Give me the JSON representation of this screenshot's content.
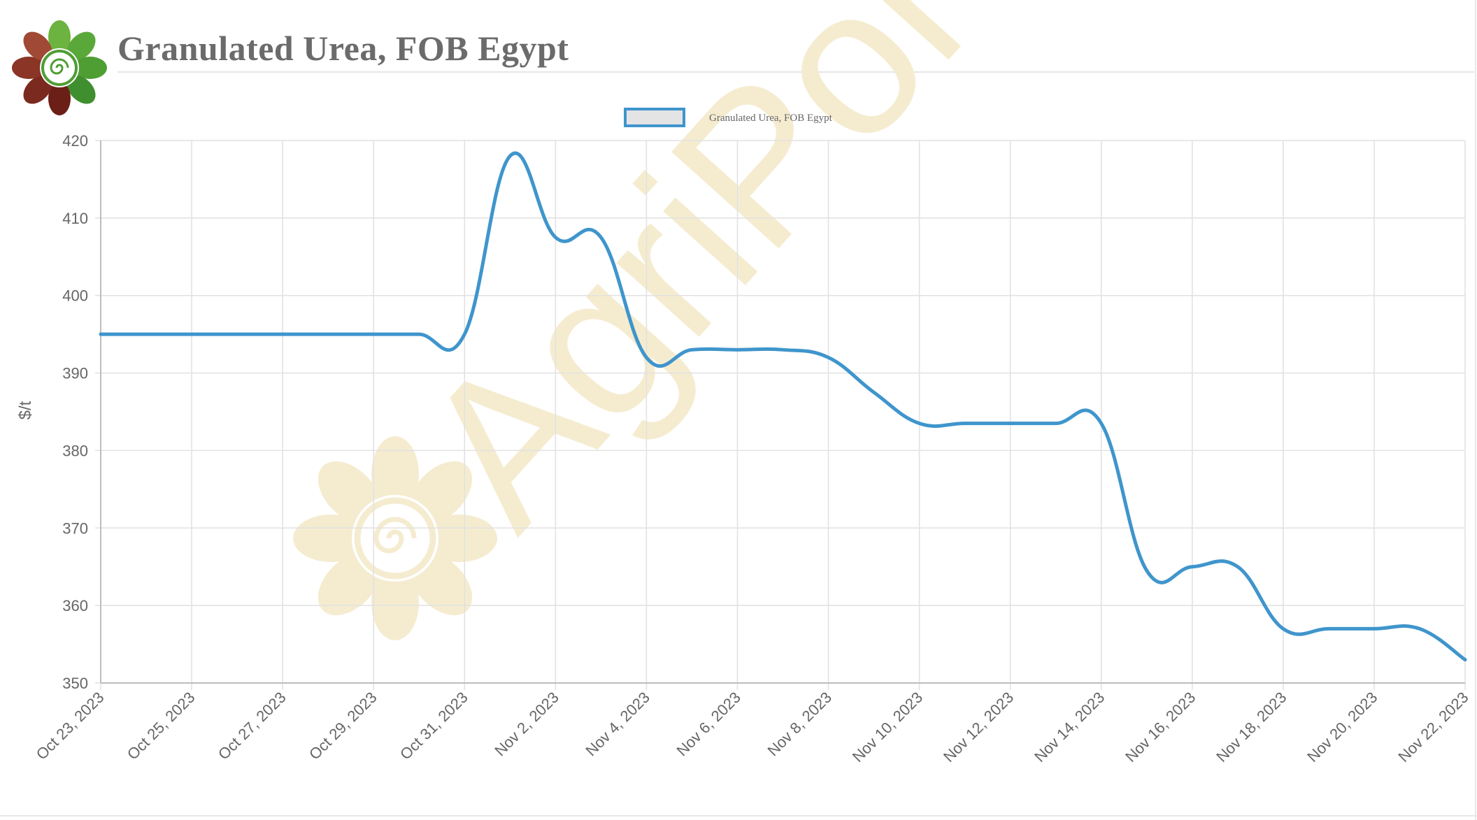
{
  "header": {
    "title": "Granulated Urea, FOB Egypt",
    "logo_icon": "agriportal-flower-logo-icon"
  },
  "watermark": {
    "text": "AgriPortal",
    "icon": "agriportal-flower-watermark-icon",
    "color": "#f5ecd0"
  },
  "colors": {
    "series_line": "#3f95cc",
    "legend_fill": "#e4e4e4",
    "grid": "#e1e1e1",
    "axis_text": "#666666",
    "title": "#6b6b6b"
  },
  "chart_data": {
    "type": "line",
    "title": "",
    "xlabel": "",
    "ylabel": "$/t",
    "ylim": [
      350,
      420
    ],
    "yticks": [
      350,
      360,
      370,
      380,
      390,
      400,
      410,
      420
    ],
    "grid": true,
    "legend_position": "top-center",
    "x_tick_labels": [
      "Oct 23, 2023",
      "Oct 25, 2023",
      "Oct 27, 2023",
      "Oct 29, 2023",
      "Oct 31, 2023",
      "Nov 2, 2023",
      "Nov 4, 2023",
      "Nov 6, 2023",
      "Nov 8, 2023",
      "Nov 10, 2023",
      "Nov 12, 2023",
      "Nov 14, 2023",
      "Nov 16, 2023",
      "Nov 18, 2023",
      "Nov 20, 2023",
      "Nov 22, 2023"
    ],
    "x": [
      "Oct 23, 2023",
      "Oct 24, 2023",
      "Oct 25, 2023",
      "Oct 26, 2023",
      "Oct 27, 2023",
      "Oct 28, 2023",
      "Oct 29, 2023",
      "Oct 30, 2023",
      "Oct 31, 2023",
      "Nov 1, 2023",
      "Nov 2, 2023",
      "Nov 3, 2023",
      "Nov 4, 2023",
      "Nov 5, 2023",
      "Nov 6, 2023",
      "Nov 7, 2023",
      "Nov 8, 2023",
      "Nov 9, 2023",
      "Nov 10, 2023",
      "Nov 11, 2023",
      "Nov 12, 2023",
      "Nov 13, 2023",
      "Nov 14, 2023",
      "Nov 15, 2023",
      "Nov 16, 2023",
      "Nov 17, 2023",
      "Nov 18, 2023",
      "Nov 19, 2023",
      "Nov 20, 2023",
      "Nov 21, 2023",
      "Nov 22, 2023"
    ],
    "series": [
      {
        "name": "Granulated Urea, FOB Egypt",
        "values": [
          395,
          395,
          395,
          395,
          395,
          395,
          395,
          395,
          395,
          418,
          407.5,
          407.5,
          392,
          393,
          393,
          393,
          392,
          387.5,
          383.5,
          383.5,
          383.5,
          383.5,
          383.5,
          364.5,
          365,
          365,
          357,
          357,
          357,
          357,
          353
        ]
      }
    ]
  }
}
